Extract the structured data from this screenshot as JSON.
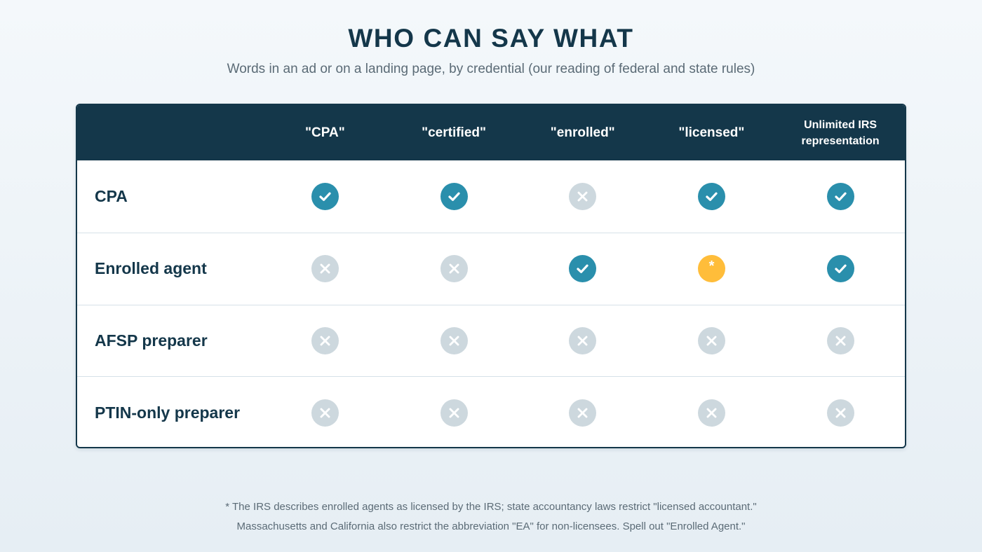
{
  "title": "WHO CAN SAY WHAT",
  "subtitle": "Words in an ad or on a landing page, by credential (our reading of federal and state rules)",
  "table": {
    "columns": [
      "\"CPA\"",
      "\"certified\"",
      "\"enrolled\"",
      "\"licensed\"",
      "Unlimited IRS representation"
    ],
    "rows": [
      {
        "label": "CPA",
        "cells": [
          "yes",
          "yes",
          "no",
          "yes",
          "yes"
        ]
      },
      {
        "label": "Enrolled agent",
        "cells": [
          "no",
          "no",
          "yes",
          "star",
          "yes"
        ]
      },
      {
        "label": "AFSP preparer",
        "cells": [
          "no",
          "no",
          "no",
          "no",
          "no"
        ]
      },
      {
        "label": "PTIN-only preparer",
        "cells": [
          "no",
          "no",
          "no",
          "no",
          "no"
        ]
      }
    ],
    "star_mark": "*"
  },
  "footnote": {
    "line1": "* The IRS describes enrolled agents as licensed by the IRS; state accountancy laws restrict \"licensed accountant.\"",
    "line2": "Massachusetts and California also restrict the abbreviation \"EA\" for non-licensees. Spell out \"Enrolled Agent.\""
  },
  "colors": {
    "navy": "#14374a",
    "yes": "#2a8fac",
    "no": "#cdd8de",
    "star": "#ffbd3a"
  },
  "icons": {
    "yes": "check-circle-icon",
    "no": "x-circle-icon",
    "star": "asterisk-circle-icon"
  }
}
